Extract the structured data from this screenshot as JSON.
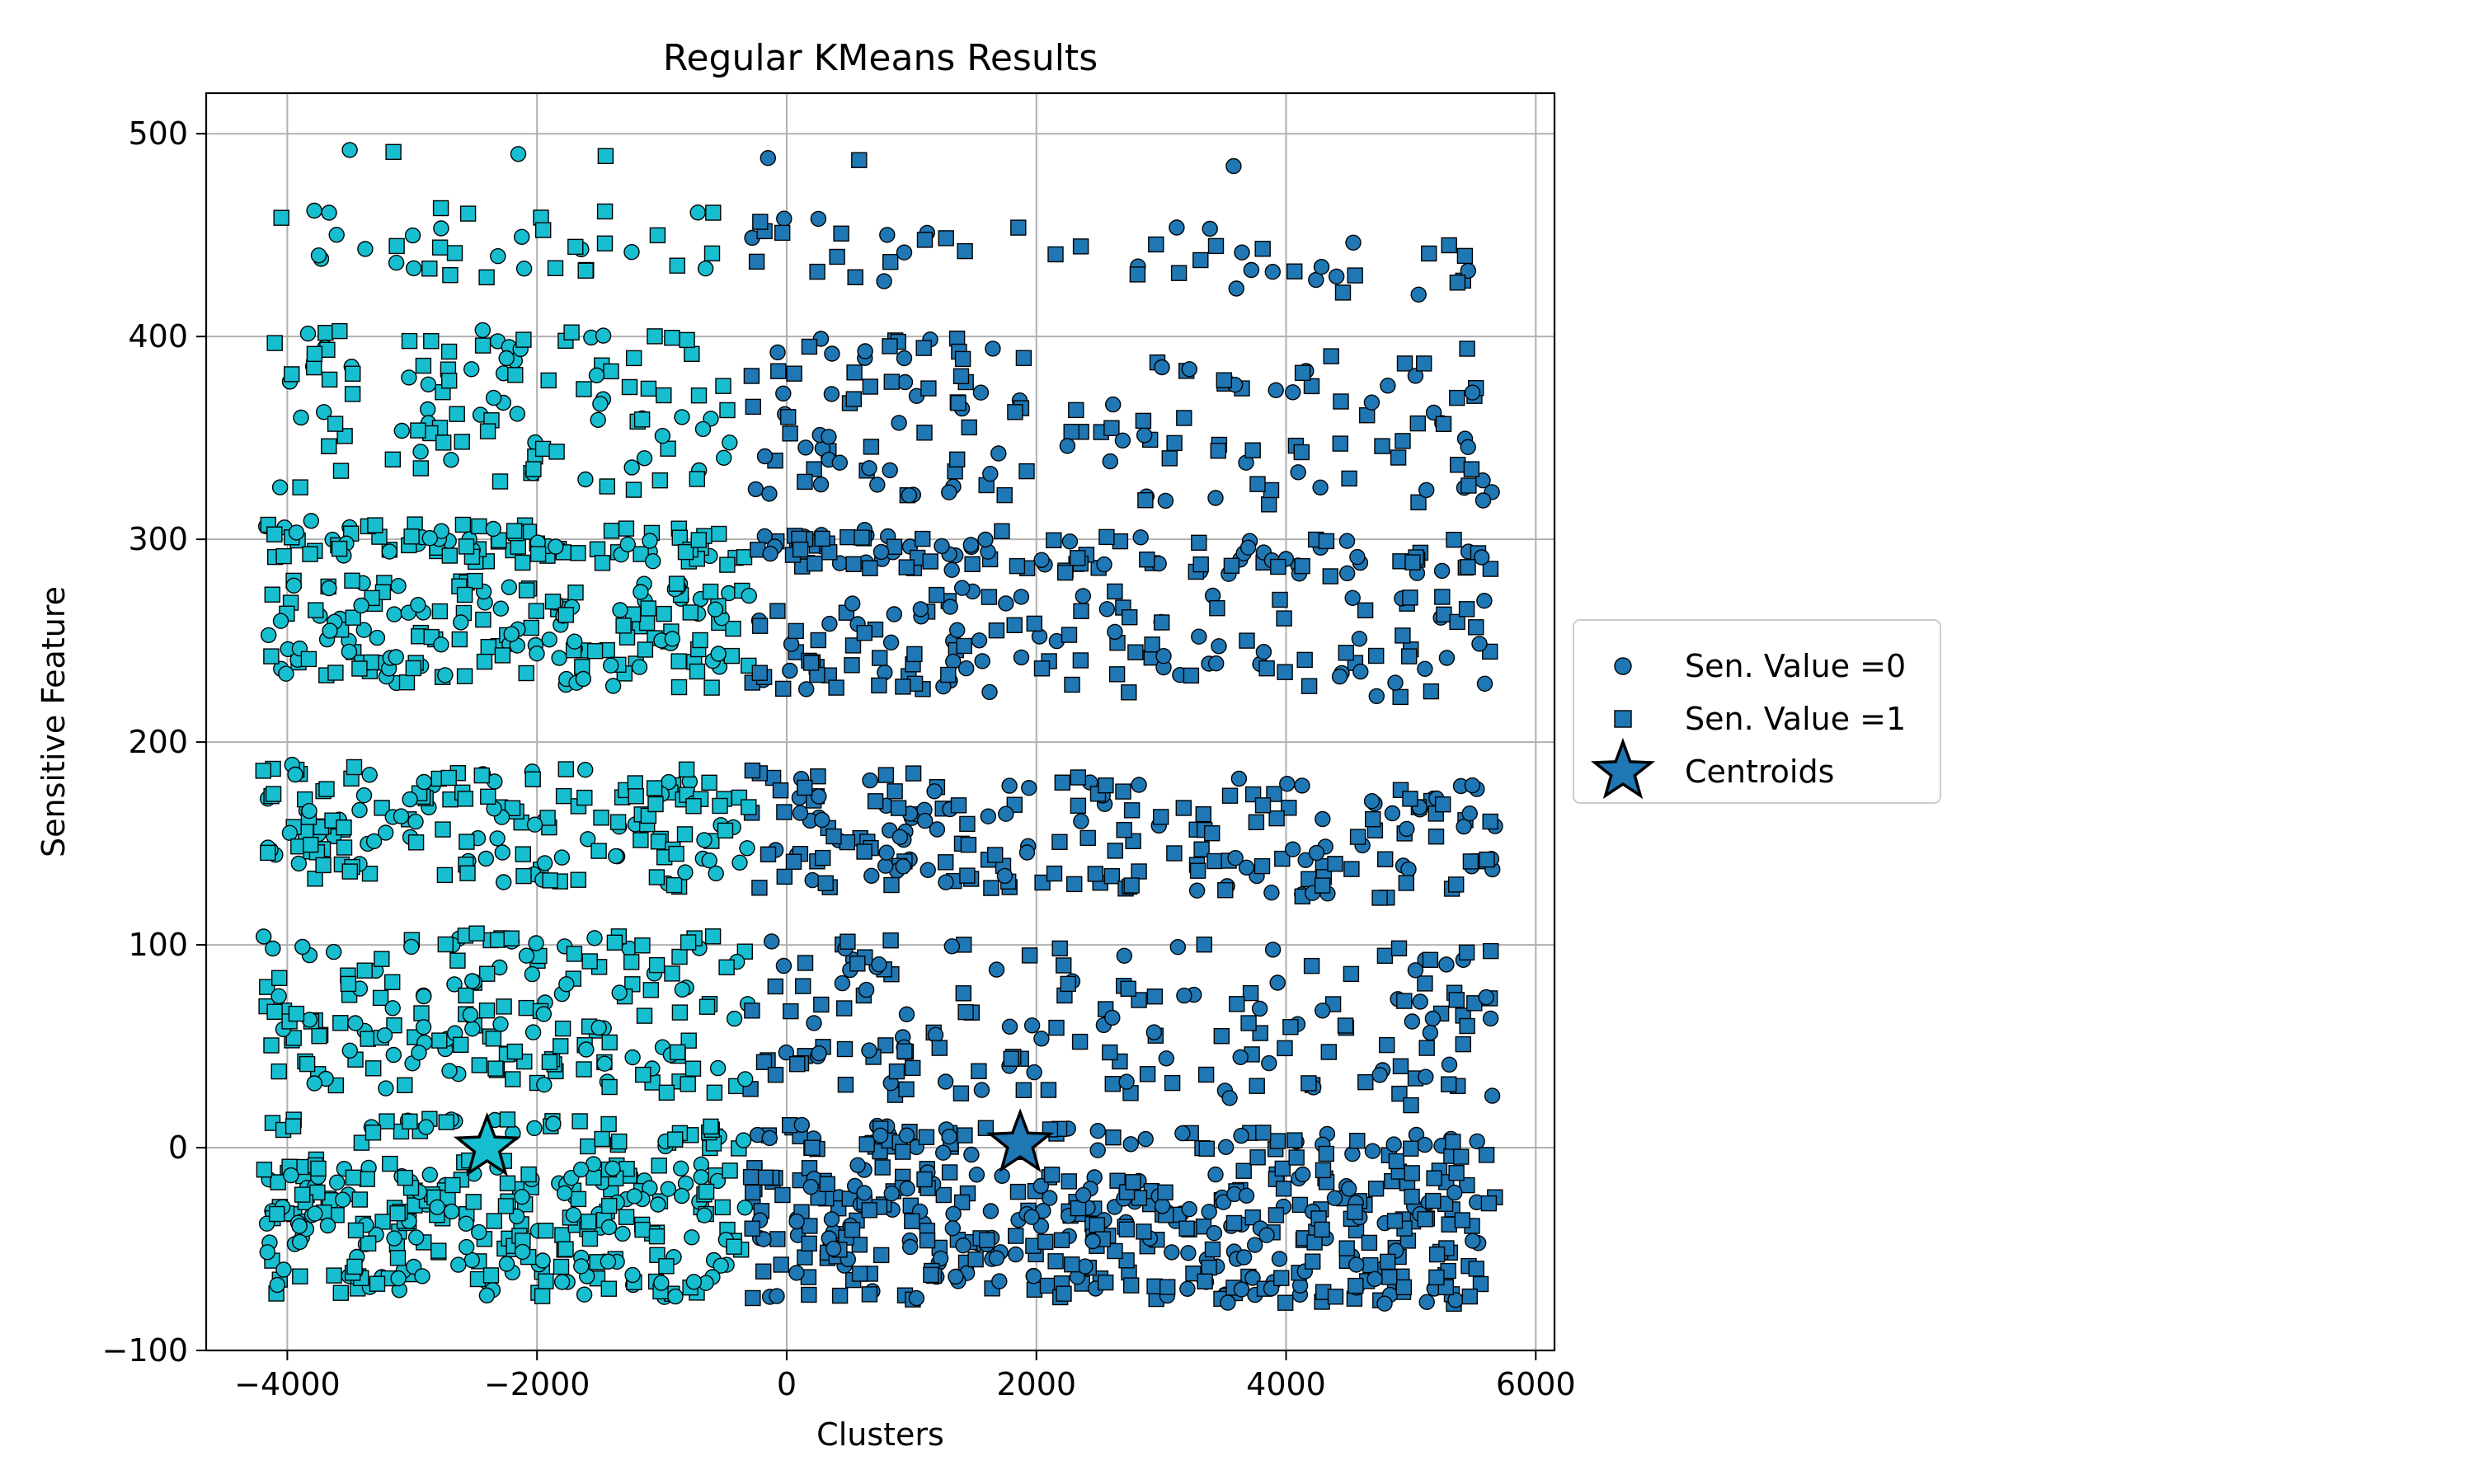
{
  "chart_data": {
    "type": "scatter",
    "title": "Regular KMeans Results",
    "xlabel": "Clusters",
    "ylabel": "Sensitive Feature",
    "xlim": [
      -4650,
      6150
    ],
    "ylim": [
      -100,
      520
    ],
    "xticks": [
      -4000,
      -2000,
      0,
      2000,
      4000,
      6000
    ],
    "xtick_labels": [
      "−4000",
      "−2000",
      "0",
      "2000",
      "4000",
      "6000"
    ],
    "yticks": [
      -100,
      0,
      100,
      200,
      300,
      400,
      500
    ],
    "ytick_labels": [
      "−100",
      "0",
      "100",
      "200",
      "300",
      "400",
      "500"
    ],
    "grid": true,
    "legend_position": "outside right, center",
    "legend": [
      {
        "label": "Sen. Value =0",
        "marker": "circle"
      },
      {
        "label": "Sen. Value =1",
        "marker": "square"
      },
      {
        "label": "Centroids",
        "marker": "star"
      }
    ],
    "clusters": [
      {
        "name": "cluster-0",
        "color": "#17becf",
        "x_range": [
          -4200,
          -300
        ]
      },
      {
        "name": "cluster-1",
        "color": "#1f77b4",
        "x_range": [
          -300,
          5680
        ]
      }
    ],
    "bands": [
      {
        "y_range": [
          -72,
          -5
        ],
        "density": 1.0
      },
      {
        "y_range": [
          2,
          16
        ],
        "density": 0.55
      },
      {
        "y_range": [
          30,
          108
        ],
        "density": 0.55
      },
      {
        "y_range": [
          132,
          190
        ],
        "density": 0.7
      },
      {
        "y_range": [
          230,
          282
        ],
        "density": 0.65
      },
      {
        "y_range": [
          290,
          310
        ],
        "density": 0.75
      },
      {
        "y_range": [
          325,
          405
        ],
        "density": 0.4
      },
      {
        "y_range": [
          430,
          465
        ],
        "density": 0.22
      }
    ],
    "outlier_points": [
      {
        "x": -3500,
        "y": 492,
        "marker": "circle",
        "cluster": 0
      },
      {
        "x": -3150,
        "y": 491,
        "marker": "square",
        "cluster": 0
      },
      {
        "x": -2150,
        "y": 490,
        "marker": "circle",
        "cluster": 0
      },
      {
        "x": -1450,
        "y": 489,
        "marker": "square",
        "cluster": 0
      },
      {
        "x": -150,
        "y": 488,
        "marker": "circle",
        "cluster": 1
      },
      {
        "x": 580,
        "y": 487,
        "marker": "square",
        "cluster": 1
      },
      {
        "x": 3580,
        "y": 484,
        "marker": "circle",
        "cluster": 1
      }
    ],
    "centroids": [
      {
        "x": -2400,
        "y": 0,
        "cluster": 0
      },
      {
        "x": 1870,
        "y": 2,
        "cluster": 1
      }
    ]
  }
}
